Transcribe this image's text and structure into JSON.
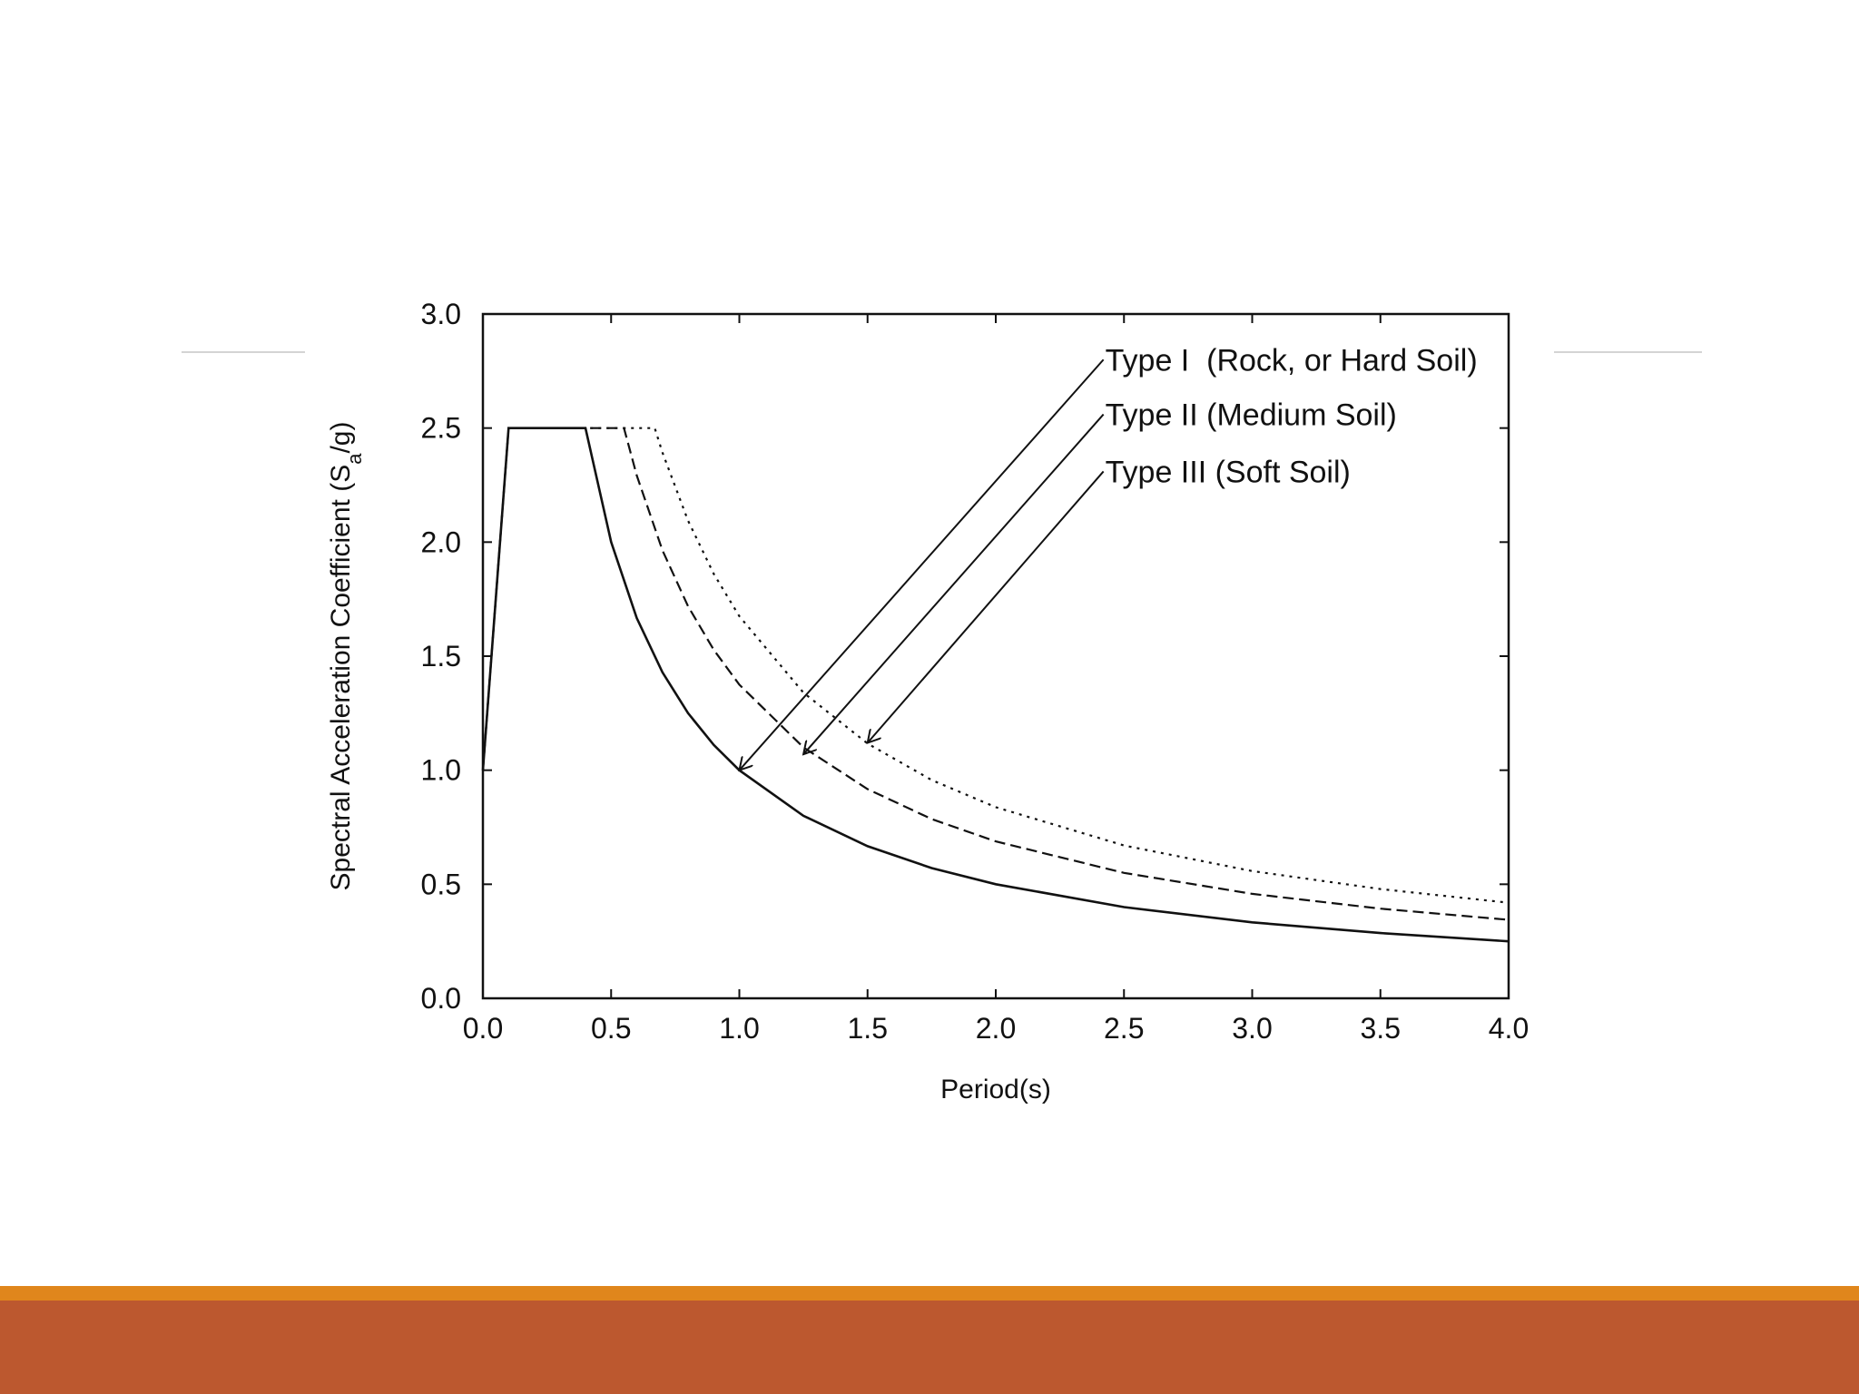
{
  "slide": {
    "accent_color": "#E0861C",
    "band_color": "#BC582F",
    "rule_color": "#D4D4D4"
  },
  "chart_data": {
    "type": "line",
    "xlabel": "Period(s)",
    "ylabel": "Spectral Acceleration Coefficient (Sa/g)",
    "ylabel_main": "Spectral Acceleration Coefficient (S",
    "ylabel_sub": "a",
    "ylabel_tail": "/g)",
    "xlim": [
      0,
      4
    ],
    "ylim": [
      0,
      3
    ],
    "x_ticks": [
      "0.0",
      "0.5",
      "1.0",
      "1.5",
      "2.0",
      "2.5",
      "3.0",
      "3.5",
      "4.0"
    ],
    "y_ticks": [
      "0.0",
      "0.5",
      "1.0",
      "1.5",
      "2.0",
      "2.5",
      "3.0"
    ],
    "grid": false,
    "series": [
      {
        "name": "Type I  (Rock, or Hard Soil)",
        "style": "solid",
        "points": [
          [
            0,
            1.0
          ],
          [
            0.1,
            2.5
          ],
          [
            0.4,
            2.5
          ],
          [
            0.5,
            2.0
          ],
          [
            0.6,
            1.667
          ],
          [
            0.7,
            1.429
          ],
          [
            0.8,
            1.25
          ],
          [
            0.9,
            1.111
          ],
          [
            1.0,
            1.0
          ],
          [
            1.25,
            0.8
          ],
          [
            1.5,
            0.667
          ],
          [
            1.75,
            0.571
          ],
          [
            2.0,
            0.5
          ],
          [
            2.5,
            0.4
          ],
          [
            3.0,
            0.333
          ],
          [
            3.5,
            0.286
          ],
          [
            4.0,
            0.25
          ]
        ]
      },
      {
        "name": "Type II (Medium Soil)",
        "style": "dashed",
        "points": [
          [
            0,
            1.0
          ],
          [
            0.1,
            2.5
          ],
          [
            0.55,
            2.5
          ],
          [
            0.6,
            2.292
          ],
          [
            0.7,
            1.964
          ],
          [
            0.8,
            1.719
          ],
          [
            0.9,
            1.528
          ],
          [
            1.0,
            1.375
          ],
          [
            1.25,
            1.1
          ],
          [
            1.5,
            0.917
          ],
          [
            1.75,
            0.786
          ],
          [
            2.0,
            0.688
          ],
          [
            2.5,
            0.55
          ],
          [
            3.0,
            0.458
          ],
          [
            3.5,
            0.393
          ],
          [
            4.0,
            0.344
          ]
        ]
      },
      {
        "name": "Type III (Soft Soil)",
        "style": "dotted",
        "points": [
          [
            0,
            1.0
          ],
          [
            0.1,
            2.5
          ],
          [
            0.67,
            2.5
          ],
          [
            0.7,
            2.393
          ],
          [
            0.8,
            2.094
          ],
          [
            0.9,
            1.861
          ],
          [
            1.0,
            1.675
          ],
          [
            1.25,
            1.34
          ],
          [
            1.5,
            1.117
          ],
          [
            1.75,
            0.957
          ],
          [
            2.0,
            0.838
          ],
          [
            2.5,
            0.67
          ],
          [
            3.0,
            0.558
          ],
          [
            3.5,
            0.479
          ],
          [
            4.0,
            0.419
          ]
        ]
      }
    ],
    "legend_placement": "top-right, with arrows pointing to each curve",
    "annotations": [
      {
        "series": 0,
        "arrow_tip": [
          1.0,
          1.0
        ],
        "label_anchor": [
          2.42,
          2.8
        ]
      },
      {
        "series": 1,
        "arrow_tip": [
          1.25,
          1.07
        ],
        "label_anchor": [
          2.42,
          2.56
        ]
      },
      {
        "series": 2,
        "arrow_tip": [
          1.5,
          1.12
        ],
        "label_anchor": [
          2.42,
          2.31
        ]
      }
    ]
  }
}
